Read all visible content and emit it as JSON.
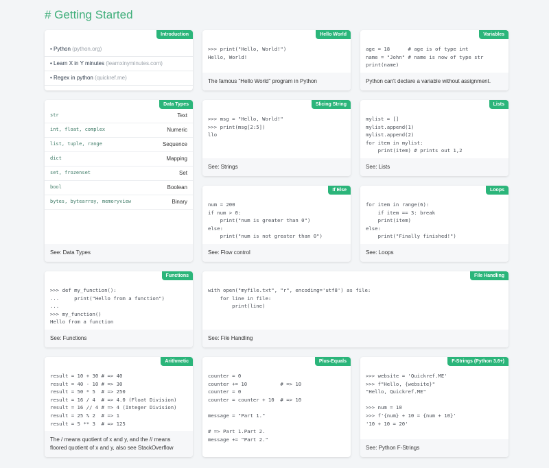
{
  "header": {
    "title": "# Getting Started"
  },
  "cards": [
    {
      "title": "Introduction",
      "links": [
        {
          "text": "Python",
          "note": "(python.org)"
        },
        {
          "text": "Learn X in Y minutes",
          "note": "(learnxinyminutes.com)"
        },
        {
          "text": "Regex in python",
          "note": "(quickref.me)"
        }
      ]
    },
    {
      "title": "Hello World",
      "code": [
        [
          ">>> print(\"Hello, World!\")",
          "Hello, World!"
        ]
      ],
      "footer": "The famous \"Hello World\" program in Python"
    },
    {
      "title": "Variables",
      "code": [
        [
          "age = 18      # age is of type int",
          "name = \"John\" # name is now of type str",
          "print(name)"
        ]
      ],
      "footer": "Python can't declare a variable without assignment."
    },
    {
      "title": "Data Types",
      "rows": [
        [
          "str",
          "Text"
        ],
        [
          "int, float, complex",
          "Numeric"
        ],
        [
          "list, tuple, range",
          "Sequence"
        ],
        [
          "dict",
          "Mapping"
        ],
        [
          "set, frozenset",
          "Set"
        ],
        [
          "bool",
          "Boolean"
        ],
        [
          "bytes, bytearray, memoryview",
          "Binary"
        ]
      ],
      "footer": "See: Data Types"
    },
    {
      "title": "Slicing String",
      "code": [
        [
          ">>> msg = \"Hello, World!\"",
          ">>> print(msg[2:5])",
          "llo"
        ]
      ],
      "footer": "See: Strings"
    },
    {
      "title": "Lists",
      "code": [
        [
          "mylist = []",
          "mylist.append(1)",
          "mylist.append(2)",
          "for item in mylist:",
          "    print(item) # prints out 1,2"
        ]
      ],
      "footer": "See: Lists"
    },
    {
      "title": "If Else",
      "code": [
        [
          "num = 200",
          "if num > 0:",
          "    print(\"num is greater than 0\")",
          "else:",
          "    print(\"num is not greater than 0\")"
        ]
      ],
      "footer": "See: Flow control"
    },
    {
      "title": "Loops",
      "code": [
        [
          "for item in range(6):",
          "    if item == 3: break",
          "    print(item)",
          "else:",
          "    print(\"Finally finished!\")"
        ]
      ],
      "footer": "See: Loops"
    },
    {
      "title": "Functions",
      "code": [
        [
          ">>> def my_function():",
          "...     print(\"Hello from a function\")",
          "...",
          ">>> my_function()",
          "Hello from a function"
        ]
      ],
      "footer": "See: Functions"
    },
    {
      "title": "File Handling",
      "code": [
        [
          "with open(\"myfile.txt\", \"r\", encoding='utf8') as file:",
          "    for line in file:",
          "        print(line)"
        ]
      ],
      "footer": "See: File Handling"
    },
    {
      "title": "Arithmetic",
      "code": [
        [
          "result = 10 + 30 # => 40",
          "result = 40 - 10 # => 30",
          "result = 50 * 5  # => 250",
          "result = 16 / 4  # => 4.0 (Float Division)",
          "result = 16 // 4 # => 4 (Integer Division)",
          "result = 25 % 2  # => 1",
          "result = 5 ** 3  # => 125"
        ]
      ],
      "footer": "The / means quotient of x and y, and the // means floored quotient of x and y, also see StackOverflow"
    },
    {
      "title": "Plus-Equals",
      "code": [
        [
          "counter = 0",
          "counter += 10           # => 10",
          "counter = 0",
          "counter = counter + 10  # => 10"
        ],
        [
          "message = \"Part 1.\""
        ],
        [
          "# => Part 1.Part 2.",
          "message += \"Part 2.\""
        ]
      ]
    },
    {
      "title": "F-Strings (Python 3.6+)",
      "code": [
        [
          ">>> website = 'Quickref.ME'",
          ">>> f\"Hello, {website}\"",
          "\"Hello, Quickref.ME\""
        ],
        [
          ">>> num = 10",
          ">>> f'{num} + 10 = {num + 10}'",
          "'10 + 10 = 20'"
        ]
      ],
      "footer": "See: Python F-Strings"
    }
  ]
}
